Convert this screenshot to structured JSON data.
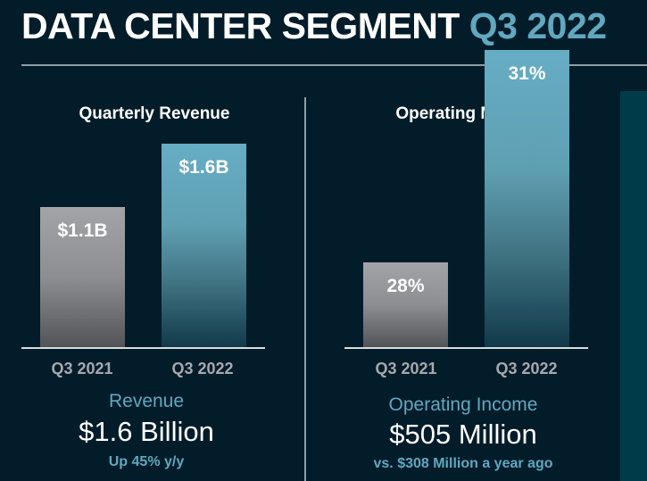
{
  "header": {
    "title_main": "DATA CENTER SEGMENT",
    "title_accent": "Q3 2022"
  },
  "colors": {
    "background": "#021c2a",
    "accent": "#61a8bf",
    "prior_bar": "#a3a4a7",
    "current_bar": "#66adc4",
    "side_panel": "#003b4a",
    "category_label": "#a7a9ac"
  },
  "chart_data": [
    {
      "type": "bar",
      "title": "Quarterly Revenue",
      "categories": [
        "Q3 2021",
        "Q3 2022"
      ],
      "values": [
        1.1,
        1.6
      ],
      "data_labels": [
        "$1.1B",
        "$1.6B"
      ],
      "unit": "Billion USD",
      "xlabel": "",
      "ylabel": "",
      "ylim": [
        0,
        1.7
      ],
      "grid": false,
      "legend": "none"
    },
    {
      "type": "bar",
      "title": "Operating Margin",
      "categories": [
        "Q3 2021",
        "Q3 2022"
      ],
      "values": [
        28,
        31
      ],
      "data_labels": [
        "28%",
        "31%"
      ],
      "unit": "percent",
      "xlabel": "",
      "ylabel": "",
      "ylim": [
        25,
        32
      ],
      "grid": false,
      "legend": "none"
    }
  ],
  "summaries": [
    {
      "name": "Revenue",
      "value": "$1.6 Billion",
      "sub": "Up 45% y/y"
    },
    {
      "name": "Operating Income",
      "value": "$505 Million",
      "sub": "vs. $308 Million a year ago"
    }
  ]
}
